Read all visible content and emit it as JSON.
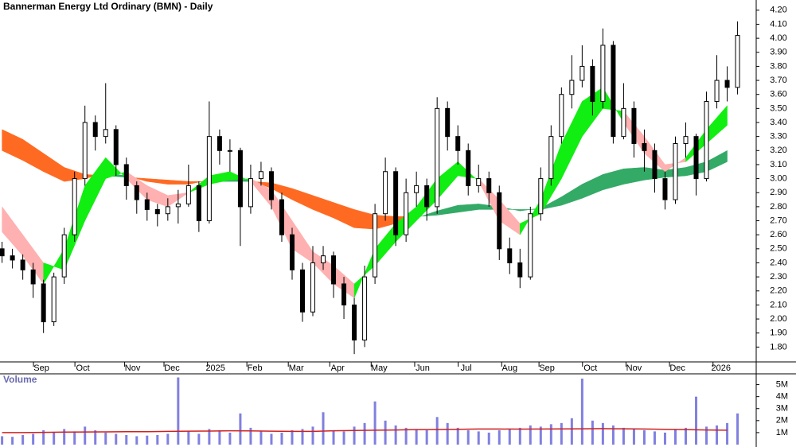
{
  "chart_data": [
    {
      "type": "candlestick",
      "title": "Bannerman Energy Ltd Ordinary (BMN) - Daily",
      "x": [
        0,
        5,
        10,
        15,
        20,
        25,
        30,
        35,
        40,
        45,
        50,
        55,
        60,
        65,
        70,
        75,
        80,
        85,
        90,
        95,
        100,
        105,
        110,
        115,
        120,
        125,
        130,
        135,
        140,
        145,
        150,
        155,
        160,
        165,
        170,
        175,
        180,
        185,
        190,
        195,
        200,
        205,
        210,
        215,
        220,
        225,
        230,
        235,
        240,
        245,
        250,
        255,
        260,
        265,
        270,
        275,
        280,
        285,
        290,
        295,
        300,
        305,
        310,
        315,
        320,
        325,
        330,
        335,
        340,
        345,
        350,
        355
      ],
      "open": [
        2.5,
        2.45,
        2.42,
        2.35,
        2.25,
        1.98,
        2.3,
        2.6,
        3.0,
        3.4,
        3.3,
        3.35,
        3.1,
        2.95,
        2.85,
        2.78,
        2.75,
        2.8,
        2.82,
        2.95,
        2.7,
        3.3,
        3.2,
        3.2,
        2.8,
        3.0,
        3.05,
        2.85,
        2.6,
        2.35,
        2.05,
        2.4,
        2.45,
        2.25,
        2.1,
        1.85,
        2.3,
        2.75,
        3.05,
        2.6,
        2.9,
        2.95,
        2.8,
        3.5,
        3.3,
        3.2,
        2.95,
        3.0,
        2.9,
        2.5,
        2.4,
        2.3,
        2.75,
        3.0,
        3.3,
        3.6,
        3.7,
        3.8,
        3.55,
        3.95,
        3.3,
        3.5,
        3.25,
        3.2,
        3.0,
        2.85,
        3.25,
        3.3,
        3.0,
        3.55,
        3.7,
        3.65
      ],
      "high": [
        2.55,
        2.5,
        2.46,
        2.4,
        2.28,
        2.33,
        2.65,
        3.05,
        3.52,
        3.45,
        3.68,
        3.38,
        3.15,
        2.98,
        2.9,
        2.82,
        2.86,
        2.92,
        3.1,
        2.98,
        3.55,
        3.35,
        3.28,
        3.22,
        3.1,
        3.12,
        3.08,
        2.9,
        2.65,
        2.4,
        2.52,
        2.52,
        2.48,
        2.3,
        2.15,
        2.38,
        2.82,
        3.15,
        3.08,
        3.0,
        3.05,
        3.0,
        3.58,
        3.55,
        3.38,
        3.25,
        3.1,
        3.05,
        2.95,
        2.58,
        2.5,
        2.8,
        3.08,
        3.38,
        3.65,
        3.88,
        3.95,
        3.85,
        4.07,
        3.98,
        3.68,
        3.55,
        3.35,
        3.25,
        3.05,
        3.3,
        3.4,
        3.32,
        3.62,
        3.88,
        3.8,
        4.12
      ],
      "low": [
        2.4,
        2.36,
        2.28,
        2.15,
        1.9,
        1.95,
        2.25,
        2.55,
        2.95,
        3.2,
        3.25,
        3.02,
        2.85,
        2.75,
        2.7,
        2.66,
        2.7,
        2.68,
        2.8,
        2.62,
        2.68,
        3.1,
        3.05,
        2.52,
        2.75,
        2.95,
        2.78,
        2.55,
        2.28,
        1.98,
        2.02,
        2.35,
        2.15,
        2.0,
        1.75,
        1.8,
        2.25,
        2.7,
        2.52,
        2.55,
        2.8,
        2.7,
        2.75,
        3.2,
        3.1,
        2.88,
        2.9,
        2.8,
        2.42,
        2.32,
        2.22,
        2.28,
        2.7,
        2.95,
        3.25,
        3.5,
        3.65,
        3.45,
        3.5,
        3.25,
        3.28,
        3.15,
        3.05,
        2.9,
        2.78,
        2.82,
        3.15,
        2.88,
        2.98,
        3.5,
        3.55,
        3.6
      ],
      "close": [
        2.45,
        2.42,
        2.35,
        2.25,
        1.98,
        2.3,
        2.6,
        3.0,
        3.4,
        3.3,
        3.35,
        3.1,
        2.95,
        2.85,
        2.78,
        2.75,
        2.8,
        2.82,
        2.95,
        2.7,
        3.3,
        3.2,
        3.2,
        2.8,
        3.0,
        3.05,
        2.85,
        2.6,
        2.35,
        2.05,
        2.4,
        2.45,
        2.25,
        2.1,
        1.85,
        2.3,
        2.75,
        3.05,
        2.6,
        2.9,
        2.95,
        2.8,
        3.5,
        3.3,
        3.2,
        2.95,
        3.0,
        2.9,
        2.5,
        2.4,
        2.3,
        2.75,
        3.0,
        3.3,
        3.6,
        3.7,
        3.8,
        3.55,
        3.95,
        3.3,
        3.5,
        3.25,
        3.2,
        3.0,
        2.85,
        3.25,
        3.3,
        3.0,
        3.55,
        3.7,
        3.65,
        4.02
      ],
      "up_color": "#ffffff",
      "down_color": "#000000",
      "ribbons": [
        {
          "x": [
            0,
            10,
            20,
            30,
            40,
            50,
            60,
            70,
            80,
            90,
            100,
            110,
            120,
            130,
            140,
            150,
            160,
            170,
            180,
            190,
            200,
            210,
            220,
            230,
            240,
            250,
            260,
            270,
            280,
            290,
            300,
            310,
            320,
            330,
            340,
            350
          ],
          "line1": [
            3.2,
            3.13,
            3.05,
            2.98,
            3.0,
            3.04,
            3.02,
            2.98,
            2.96,
            2.96,
            2.99,
            3.0,
            2.99,
            2.93,
            2.85,
            2.78,
            2.72,
            2.65,
            2.64,
            2.68,
            2.72,
            2.77,
            2.81,
            2.82,
            2.8,
            2.77,
            2.79,
            2.87,
            2.96,
            3.03,
            3.07,
            3.08,
            3.06,
            3.08,
            3.12,
            3.2
          ],
          "line2": [
            3.35,
            3.28,
            3.18,
            3.08,
            3.03,
            3.02,
            3.01,
            3.0,
            2.99,
            2.98,
            2.98,
            2.98,
            2.98,
            2.97,
            2.93,
            2.88,
            2.83,
            2.78,
            2.74,
            2.73,
            2.73,
            2.74,
            2.76,
            2.78,
            2.78,
            2.78,
            2.78,
            2.81,
            2.86,
            2.92,
            2.96,
            2.99,
            3.01,
            3.02,
            3.05,
            3.12
          ],
          "up_color": "#33aa66",
          "down_color": "#ff6a22"
        },
        {
          "x": [
            0,
            10,
            20,
            30,
            40,
            50,
            60,
            70,
            80,
            90,
            100,
            110,
            120,
            130,
            140,
            150,
            160,
            170,
            180,
            190,
            200,
            210,
            220,
            230,
            240,
            250,
            260,
            270,
            280,
            290,
            300,
            310,
            320,
            330,
            340,
            350
          ],
          "line1": [
            2.62,
            2.45,
            2.25,
            2.5,
            2.95,
            3.15,
            3.0,
            2.85,
            2.8,
            2.9,
            3.02,
            3.05,
            2.98,
            2.8,
            2.5,
            2.4,
            2.25,
            2.15,
            2.5,
            2.68,
            2.8,
            3.0,
            3.12,
            2.98,
            2.7,
            2.6,
            2.85,
            3.25,
            3.55,
            3.65,
            3.4,
            3.18,
            3.05,
            3.15,
            3.35,
            3.52
          ],
          "line2": [
            2.8,
            2.6,
            2.4,
            2.35,
            2.7,
            3.0,
            3.05,
            2.95,
            2.88,
            2.9,
            2.96,
            2.99,
            3.0,
            2.92,
            2.7,
            2.48,
            2.38,
            2.25,
            2.38,
            2.55,
            2.7,
            2.85,
            3.02,
            3.0,
            2.85,
            2.68,
            2.75,
            3.0,
            3.3,
            3.5,
            3.48,
            3.3,
            3.1,
            3.12,
            3.25,
            3.38
          ],
          "up_color": "#11ee11",
          "down_color": "#ffb0b0"
        }
      ],
      "xlim": [
        -1,
        364
      ],
      "xticks": [
        {
          "value": 19,
          "label": "Sep"
        },
        {
          "value": 39,
          "label": "Oct"
        },
        {
          "value": 63,
          "label": "Nov"
        },
        {
          "value": 82,
          "label": "Dec"
        },
        {
          "value": 103,
          "label": "2025"
        },
        {
          "value": 122,
          "label": "Feb"
        },
        {
          "value": 142,
          "label": "Mar"
        },
        {
          "value": 162,
          "label": "Apr"
        },
        {
          "value": 182,
          "label": "May"
        },
        {
          "value": 203,
          "label": "Jun"
        },
        {
          "value": 224,
          "label": "Jul"
        },
        {
          "value": 245,
          "label": "Aug"
        },
        {
          "value": 263,
          "label": "Sep"
        },
        {
          "value": 284,
          "label": "Oct"
        },
        {
          "value": 305,
          "label": "Nov"
        },
        {
          "value": 326,
          "label": "Dec"
        },
        {
          "value": 347,
          "label": "2026"
        }
      ],
      "ylim": [
        1.7,
        4.25
      ],
      "yticks": [
        {
          "value": 1.8,
          "label": "1.80"
        },
        {
          "value": 1.9,
          "label": "1.90"
        },
        {
          "value": 2.0,
          "label": "2.00"
        },
        {
          "value": 2.1,
          "label": "2.10"
        },
        {
          "value": 2.2,
          "label": "2.20"
        },
        {
          "value": 2.3,
          "label": "2.30"
        },
        {
          "value": 2.4,
          "label": "2.40"
        },
        {
          "value": 2.5,
          "label": "2.50"
        },
        {
          "value": 2.6,
          "label": "2.60"
        },
        {
          "value": 2.7,
          "label": "2.70"
        },
        {
          "value": 2.8,
          "label": "2.80"
        },
        {
          "value": 2.9,
          "label": "2.90"
        },
        {
          "value": 3.0,
          "label": "3.00"
        },
        {
          "value": 3.1,
          "label": "3.10"
        },
        {
          "value": 3.2,
          "label": "3.20"
        },
        {
          "value": 3.3,
          "label": "3.30"
        },
        {
          "value": 3.4,
          "label": "3.40"
        },
        {
          "value": 3.5,
          "label": "3.50"
        },
        {
          "value": 3.6,
          "label": "3.60"
        },
        {
          "value": 3.7,
          "label": "3.70"
        },
        {
          "value": 3.8,
          "label": "3.80"
        },
        {
          "value": 3.9,
          "label": "3.90"
        },
        {
          "value": 4.0,
          "label": "4.00"
        },
        {
          "value": 4.1,
          "label": "4.10"
        },
        {
          "value": 4.2,
          "label": "4.20"
        }
      ]
    },
    {
      "type": "bar",
      "title": "Volume",
      "color": "#8080e0",
      "values": [
        700000,
        650000,
        800000,
        900000,
        1200000,
        1000000,
        1300000,
        1100000,
        1500000,
        1200000,
        1000000,
        900000,
        800000,
        700000,
        750000,
        800000,
        900000,
        5600000,
        1100000,
        900000,
        1300000,
        1200000,
        1000000,
        2600000,
        1400000,
        1100000,
        900000,
        1000000,
        1200000,
        1300000,
        1500000,
        2700000,
        1200000,
        1100000,
        1500000,
        1800000,
        3600000,
        2000000,
        1600000,
        1400000,
        1300000,
        1200000,
        2300000,
        1800000,
        1400000,
        1200000,
        1100000,
        1000000,
        1200000,
        1300000,
        1400000,
        1600000,
        1500000,
        1700000,
        1800000,
        2200000,
        5500000,
        2000000,
        1800000,
        1600000,
        1400000,
        1300000,
        1200000,
        1100000,
        1000000,
        1300000,
        1400000,
        4000000,
        1500000,
        1600000,
        1800000,
        2600000
      ],
      "ma": {
        "color": "#d02020",
        "values": [
          1000000,
          1000000,
          1020000,
          1040000,
          1050000,
          1060000,
          1080000,
          1080000,
          1100000,
          1120000,
          1130000,
          1150000,
          1140000,
          1120000,
          1100000,
          1100000,
          1150000,
          1180000,
          1200000,
          1220000,
          1250000,
          1260000,
          1280000,
          1300000,
          1300000,
          1290000,
          1300000,
          1310000,
          1320000,
          1330000,
          1320000,
          1300000,
          1280000,
          1250000,
          1220000,
          1200000
        ]
      },
      "ylim": [
        0,
        5900000
      ],
      "yticks": [
        {
          "value": 1000000,
          "label": "1M"
        },
        {
          "value": 2000000,
          "label": "2M"
        },
        {
          "value": 3000000,
          "label": "3M"
        },
        {
          "value": 4000000,
          "label": "4M"
        },
        {
          "value": 5000000,
          "label": "5M"
        }
      ]
    }
  ]
}
